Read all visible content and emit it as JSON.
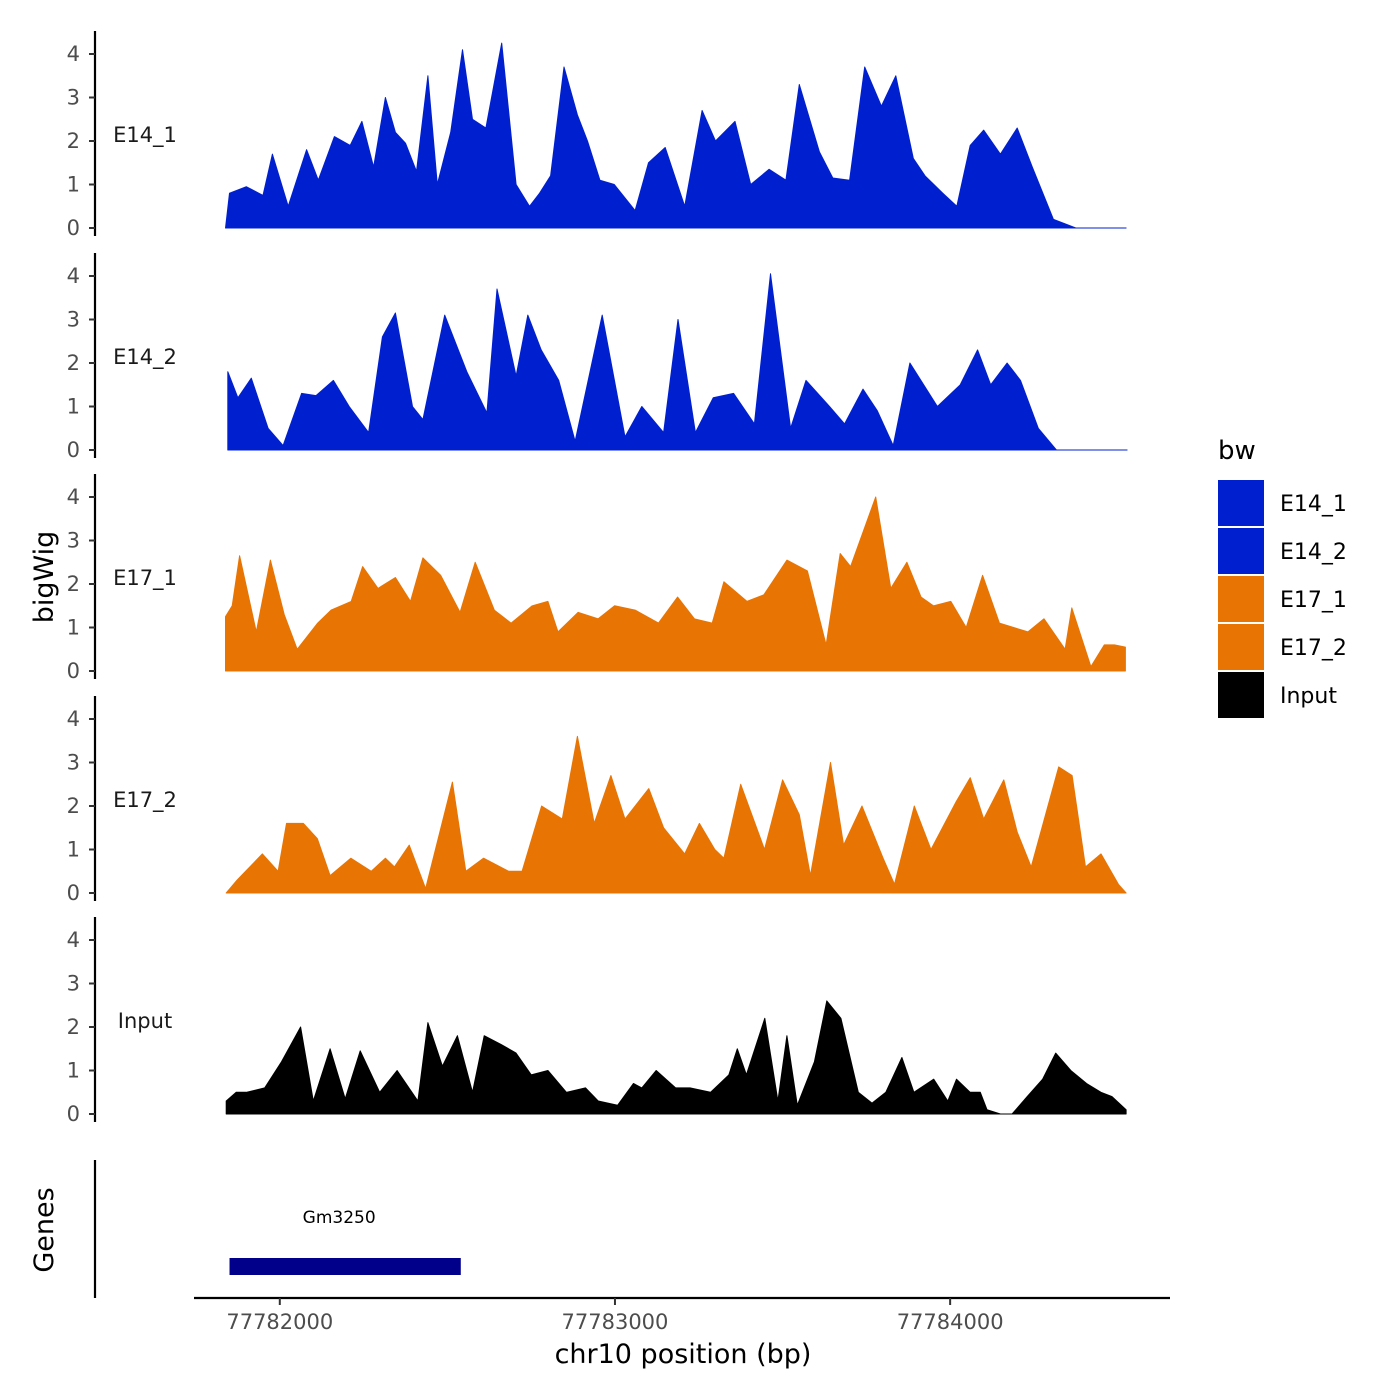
{
  "chart_data": {
    "type": "area",
    "ylabel": "bigWig",
    "xlabel": "chr10 position (bp)",
    "genes_label": "Genes",
    "xlim": [
      77781750,
      77784650
    ],
    "ylim": [
      0,
      4.5
    ],
    "y_ticks": [
      "0",
      "1",
      "2",
      "3",
      "4"
    ],
    "x_ticks": [
      {
        "value": 77782000,
        "label": "77782000"
      },
      {
        "value": 77783000,
        "label": "77783000"
      },
      {
        "value": 77784000,
        "label": "77784000"
      }
    ],
    "legend": {
      "title": "bw",
      "entries": [
        {
          "name": "E14_1",
          "color": "#0020d0"
        },
        {
          "name": "E14_2",
          "color": "#0020d0"
        },
        {
          "name": "E17_1",
          "color": "#e87404"
        },
        {
          "name": "E17_2",
          "color": "#e87404"
        },
        {
          "name": "Input",
          "color": "#000000"
        }
      ]
    },
    "series": [
      {
        "name": "E14_1",
        "color": "#0020d0",
        "x": [
          77781838,
          77781850,
          77781900,
          77781950,
          77781978,
          77782025,
          77782080,
          77782115,
          77782163,
          77782210,
          77782245,
          77782280,
          77782315,
          77782345,
          77782375,
          77782408,
          77782442,
          77782470,
          77782510,
          77782545,
          77782575,
          77782615,
          77782662,
          77782705,
          77782745,
          77782775,
          77782808,
          77782848,
          77782888,
          77782918,
          77782955,
          77782998,
          77783060,
          77783100,
          77783150,
          77783208,
          77783260,
          77783300,
          77783358,
          77783405,
          77783460,
          77783510,
          77783550,
          77783610,
          77783650,
          77783700,
          77783745,
          77783795,
          77783838,
          77783890,
          77783925,
          77783978,
          77784020,
          77784060,
          77784100,
          77784150,
          77784200,
          77784245,
          77784308,
          77784375,
          77784420,
          77784460,
          77784500,
          77784525
        ],
        "y": [
          0,
          0.8,
          0.95,
          0.75,
          1.7,
          0.5,
          1.8,
          1.1,
          2.1,
          1.9,
          2.45,
          1.4,
          3.0,
          2.2,
          1.95,
          1.3,
          3.5,
          1.0,
          2.2,
          4.1,
          2.5,
          2.3,
          4.25,
          1.0,
          0.5,
          0.8,
          1.2,
          3.7,
          2.6,
          2.0,
          1.1,
          1.0,
          0.4,
          1.5,
          1.85,
          0.5,
          2.7,
          2.0,
          2.45,
          1.0,
          1.35,
          1.1,
          3.3,
          1.75,
          1.15,
          1.1,
          3.7,
          2.8,
          3.5,
          1.6,
          1.2,
          0.8,
          0.5,
          1.9,
          2.25,
          1.7,
          2.3,
          1.4,
          0.2,
          0,
          0,
          0,
          0,
          0
        ]
      },
      {
        "name": "E14_2",
        "color": "#0020d0",
        "x": [
          77781845,
          77781875,
          77781915,
          77781965,
          77782010,
          77782065,
          77782108,
          77782160,
          77782207,
          77782265,
          77782306,
          77782345,
          77782396,
          77782427,
          77782492,
          77782558,
          77782618,
          77782648,
          77782705,
          77782740,
          77782780,
          77782832,
          77782881,
          77782962,
          77783030,
          77783080,
          77783145,
          77783188,
          77783240,
          77783293,
          77783354,
          77783416,
          77783464,
          77783524,
          77783570,
          77783640,
          77783685,
          77783740,
          77783783,
          77783830,
          77783880,
          77783962,
          77784030,
          77784082,
          77784121,
          77784170,
          77784210,
          77784263,
          77784317,
          77784360,
          77784390,
          77784445,
          77784502,
          77784528
        ],
        "y": [
          1.8,
          1.2,
          1.65,
          0.5,
          0.1,
          1.3,
          1.25,
          1.6,
          1.0,
          0.4,
          2.6,
          3.15,
          1.0,
          0.7,
          3.1,
          1.8,
          0.85,
          3.7,
          1.7,
          3.1,
          2.3,
          1.6,
          0.2,
          3.1,
          0.3,
          1.0,
          0.4,
          3.0,
          0.4,
          1.2,
          1.3,
          0.6,
          4.05,
          0.5,
          1.6,
          1.0,
          0.6,
          1.4,
          0.9,
          0.1,
          2.0,
          1.0,
          1.5,
          2.3,
          1.5,
          2.0,
          1.6,
          0.5,
          0,
          0,
          0,
          0,
          0,
          0
        ]
      },
      {
        "name": "E17_1",
        "color": "#e87404",
        "x": [
          77781838,
          77781858,
          77781880,
          77781930,
          77781972,
          77782013,
          77782052,
          77782113,
          77782153,
          77782213,
          77782247,
          77782293,
          77782345,
          77782390,
          77782427,
          77782480,
          77782538,
          77782583,
          77782640,
          77782690,
          77782753,
          77782800,
          77782830,
          77782890,
          77782950,
          77782999,
          77783060,
          77783130,
          77783187,
          77783237,
          77783290,
          77783325,
          77783394,
          77783444,
          77783513,
          77783574,
          77783630,
          77783672,
          77783703,
          77783778,
          77783823,
          77783871,
          77783913,
          77783950,
          77784002,
          77784048,
          77784097,
          77784147,
          77784232,
          77784280,
          77784343,
          77784363,
          77784420,
          77784460,
          77784490,
          77784523
        ],
        "y": [
          1.25,
          1.5,
          2.65,
          0.9,
          2.55,
          1.3,
          0.5,
          1.1,
          1.4,
          1.6,
          2.4,
          1.9,
          2.15,
          1.6,
          2.6,
          2.2,
          1.35,
          2.5,
          1.4,
          1.1,
          1.5,
          1.6,
          0.9,
          1.35,
          1.2,
          1.5,
          1.4,
          1.1,
          1.7,
          1.2,
          1.1,
          2.05,
          1.6,
          1.75,
          2.55,
          2.3,
          0.6,
          2.7,
          2.4,
          4.0,
          1.9,
          2.5,
          1.7,
          1.5,
          1.6,
          1.0,
          2.2,
          1.1,
          0.9,
          1.2,
          0.5,
          1.45,
          0.1,
          0.6,
          0.6,
          0.55
        ]
      },
      {
        "name": "E17_2",
        "color": "#e87404",
        "x": [
          77781840,
          77781873,
          77781948,
          77781995,
          77782020,
          77782070,
          77782112,
          77782150,
          77782212,
          77782273,
          77782315,
          77782342,
          77782386,
          77782435,
          77782515,
          77782555,
          77782608,
          77782683,
          77782723,
          77782781,
          77782843,
          77782888,
          77782938,
          77782988,
          77783030,
          77783101,
          77783145,
          77783208,
          77783252,
          77783298,
          77783325,
          77783375,
          77783446,
          77783500,
          77783550,
          77783583,
          77783643,
          77783682,
          77783737,
          77783800,
          77783834,
          77783893,
          77783943,
          77784018,
          77784060,
          77784100,
          77784160,
          77784200,
          77784242,
          77784324,
          77784364,
          77784404,
          77784450,
          77784502,
          77784525
        ],
        "y": [
          0,
          0.3,
          0.9,
          0.5,
          1.6,
          1.6,
          1.25,
          0.4,
          0.8,
          0.5,
          0.8,
          0.6,
          1.1,
          0.1,
          2.55,
          0.5,
          0.8,
          0.5,
          0.5,
          2.0,
          1.7,
          3.6,
          1.6,
          2.7,
          1.7,
          2.4,
          1.5,
          0.9,
          1.6,
          1.0,
          0.8,
          2.5,
          1.0,
          2.6,
          1.8,
          0.4,
          3.0,
          1.1,
          2.0,
          0.8,
          0.2,
          2.0,
          1.0,
          2.1,
          2.65,
          1.7,
          2.6,
          1.4,
          0.6,
          2.9,
          2.7,
          0.6,
          0.9,
          0.2,
          0
        ]
      },
      {
        "name": "Input",
        "color": "#000000",
        "x": [
          77781840,
          77781870,
          77781900,
          77781955,
          77782005,
          77782062,
          77782100,
          77782150,
          77782195,
          77782240,
          77782298,
          77782350,
          77782412,
          77782442,
          77782485,
          77782530,
          77782575,
          77782610,
          77782660,
          77782705,
          77782750,
          77782800,
          77782855,
          77782912,
          77782950,
          77783008,
          77783055,
          77783080,
          77783123,
          77783181,
          77783224,
          77783285,
          77783340,
          77783365,
          77783392,
          77783447,
          77783486,
          77783513,
          77783544,
          77783595,
          77783632,
          77783674,
          77783726,
          77783767,
          77783808,
          77783856,
          77783892,
          77783951,
          77783993,
          77784019,
          77784060,
          77784090,
          77784110,
          77784150,
          77784185,
          77784230,
          77784276,
          77784315,
          77784360,
          77784407,
          77784450,
          77784483,
          77784525
        ],
        "y": [
          0.3,
          0.5,
          0.5,
          0.6,
          1.2,
          2.0,
          0.3,
          1.5,
          0.35,
          1.45,
          0.5,
          1.0,
          0.3,
          2.1,
          1.1,
          1.8,
          0.5,
          1.8,
          1.6,
          1.4,
          0.9,
          1.0,
          0.5,
          0.6,
          0.3,
          0.2,
          0.7,
          0.6,
          1.0,
          0.6,
          0.6,
          0.5,
          0.9,
          1.5,
          0.9,
          2.2,
          0.3,
          1.8,
          0.2,
          1.2,
          2.6,
          2.2,
          0.5,
          0.25,
          0.5,
          1.3,
          0.5,
          0.8,
          0.3,
          0.8,
          0.5,
          0.5,
          0.1,
          0,
          0,
          0.4,
          0.8,
          1.4,
          1.0,
          0.7,
          0.5,
          0.4,
          0.1
        ]
      }
    ],
    "genes": [
      {
        "name": "Gm3250",
        "start": 77781850,
        "end": 77782540,
        "color": "#00008b"
      }
    ]
  }
}
